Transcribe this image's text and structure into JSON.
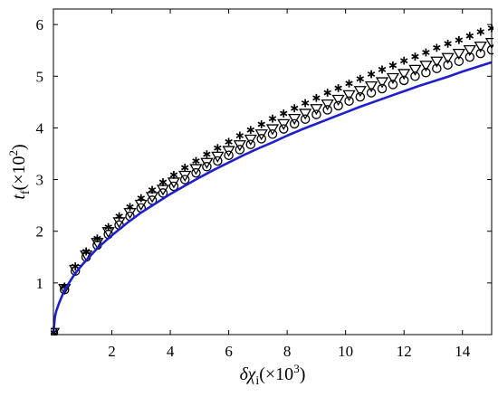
{
  "chart_data": {
    "type": "line",
    "xlabel": {
      "symbol": "δχ",
      "subscript": "i",
      "scale": "(×10",
      "exponent": "3",
      "close": ")"
    },
    "ylabel": {
      "symbol": "t",
      "subscript": "f",
      "scale": "(×10",
      "exponent": "2",
      "close": ")"
    },
    "xlim": [
      0,
      15
    ],
    "ylim": [
      0,
      6.3
    ],
    "x_ticks": [
      2,
      4,
      6,
      8,
      10,
      12,
      14
    ],
    "y_ticks": [
      1,
      2,
      3,
      4,
      5,
      6
    ],
    "series": [
      {
        "marker": "line",
        "color": "#1f1fcc",
        "formula": "y = 1.36 * x^0.5",
        "x": [
          0,
          0.05,
          0.1,
          0.2,
          0.35,
          0.5,
          0.75,
          1,
          1.5,
          2,
          2.5,
          3,
          3.5,
          4,
          4.5,
          5,
          5.5,
          6,
          6.5,
          7,
          7.5,
          8,
          8.5,
          9,
          9.5,
          10,
          10.5,
          11,
          11.5,
          12,
          12.5,
          13,
          13.5,
          14,
          14.5,
          15
        ],
        "y": [
          0.04,
          0.34,
          0.46,
          0.62,
          0.82,
          0.97,
          1.19,
          1.36,
          1.67,
          1.92,
          2.15,
          2.36,
          2.54,
          2.72,
          2.88,
          3.04,
          3.19,
          3.33,
          3.47,
          3.6,
          3.72,
          3.85,
          3.97,
          4.08,
          4.19,
          4.3,
          4.41,
          4.51,
          4.61,
          4.71,
          4.81,
          4.9,
          4.99,
          5.09,
          5.18,
          5.27
        ]
      },
      {
        "marker": "circle",
        "color": "#000000",
        "x": [
          0,
          0.38,
          0.75,
          1.12,
          1.5,
          1.88,
          2.25,
          2.62,
          3,
          3.38,
          3.75,
          4.12,
          4.5,
          4.88,
          5.25,
          5.62,
          6,
          6.38,
          6.75,
          7.12,
          7.5,
          7.88,
          8.25,
          8.62,
          9,
          9.38,
          9.75,
          10.12,
          10.5,
          10.88,
          11.25,
          11.62,
          12,
          12.38,
          12.75,
          13.12,
          13.5,
          13.88,
          14.25,
          14.62,
          15
        ],
        "y": [
          0.04,
          0.87,
          1.23,
          1.5,
          1.73,
          1.94,
          2.12,
          2.29,
          2.45,
          2.6,
          2.74,
          2.87,
          3.0,
          3.13,
          3.25,
          3.36,
          3.47,
          3.58,
          3.68,
          3.79,
          3.88,
          3.98,
          4.08,
          4.17,
          4.26,
          4.35,
          4.43,
          4.52,
          4.6,
          4.68,
          4.76,
          4.84,
          4.92,
          5.0,
          5.07,
          5.15,
          5.22,
          5.29,
          5.37,
          5.44,
          5.51
        ]
      },
      {
        "marker": "triangle-down",
        "color": "#000000",
        "x": [
          0,
          0.38,
          0.75,
          1.12,
          1.5,
          1.88,
          2.25,
          2.62,
          3,
          3.38,
          3.75,
          4.12,
          4.5,
          4.88,
          5.25,
          5.62,
          6,
          6.38,
          6.75,
          7.12,
          7.5,
          7.88,
          8.25,
          8.62,
          9,
          9.38,
          9.75,
          10.12,
          10.5,
          10.88,
          11.25,
          11.62,
          12,
          12.38,
          12.75,
          13.12,
          13.5,
          13.88,
          14.25,
          14.62,
          15
        ],
        "y": [
          0.04,
          0.89,
          1.26,
          1.54,
          1.78,
          1.99,
          2.18,
          2.36,
          2.52,
          2.67,
          2.81,
          2.95,
          3.08,
          3.21,
          3.33,
          3.45,
          3.56,
          3.67,
          3.78,
          3.88,
          3.98,
          4.08,
          4.18,
          4.28,
          4.37,
          4.46,
          4.55,
          4.64,
          4.72,
          4.81,
          4.89,
          4.97,
          5.05,
          5.13,
          5.21,
          5.29,
          5.36,
          5.44,
          5.51,
          5.58,
          5.65
        ]
      },
      {
        "marker": "asterisk",
        "color": "#000000",
        "x": [
          0,
          0.38,
          0.75,
          1.12,
          1.5,
          1.88,
          2.25,
          2.62,
          3,
          3.38,
          3.75,
          4.12,
          4.5,
          4.88,
          5.25,
          5.62,
          6,
          6.38,
          6.75,
          7.12,
          7.5,
          7.88,
          8.25,
          8.62,
          9,
          9.38,
          9.75,
          10.12,
          10.5,
          10.88,
          11.25,
          11.62,
          12,
          12.38,
          12.75,
          13.12,
          13.5,
          13.88,
          14.25,
          14.62,
          15
        ],
        "y": [
          0.04,
          0.93,
          1.32,
          1.61,
          1.86,
          2.08,
          2.29,
          2.47,
          2.64,
          2.8,
          2.95,
          3.09,
          3.23,
          3.36,
          3.49,
          3.61,
          3.73,
          3.85,
          3.96,
          4.07,
          4.18,
          4.28,
          4.38,
          4.48,
          4.58,
          4.68,
          4.77,
          4.86,
          4.95,
          5.04,
          5.13,
          5.21,
          5.3,
          5.38,
          5.46,
          5.55,
          5.63,
          5.7,
          5.78,
          5.86,
          5.93
        ]
      }
    ]
  }
}
